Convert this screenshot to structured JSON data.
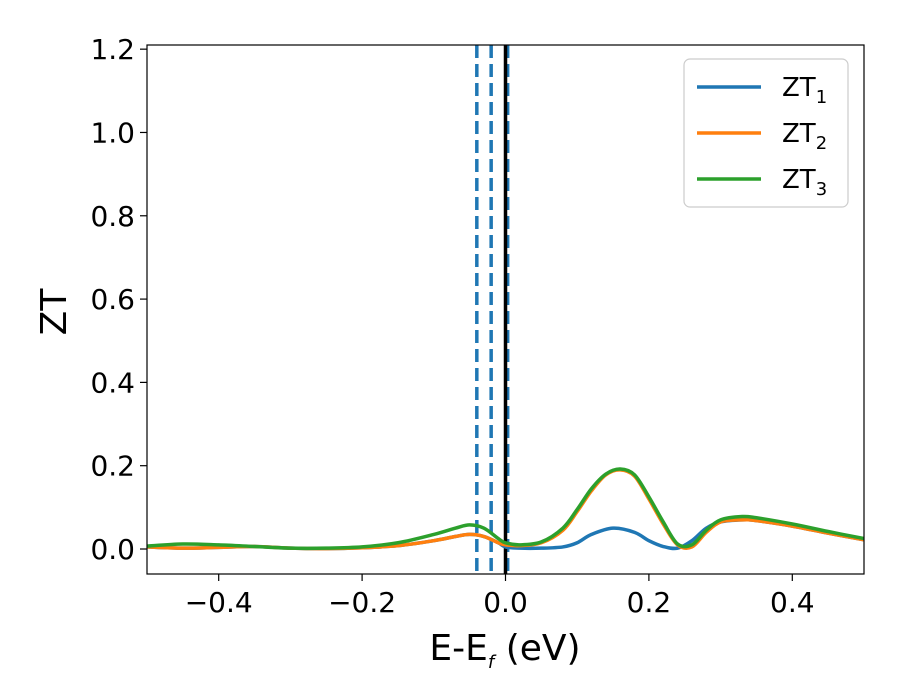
{
  "chart_data": {
    "type": "line",
    "title": "",
    "xlabel": {
      "main": "E-E",
      "sub": "f",
      "unit": " (eV)"
    },
    "ylabel": "ZT",
    "xlim": [
      -0.5,
      0.5
    ],
    "ylim": [
      -0.06,
      1.21
    ],
    "xticks": [
      -0.4,
      -0.2,
      0.0,
      0.2,
      0.4
    ],
    "xtick_labels": [
      "−0.4",
      "−0.2",
      "0.0",
      "0.2",
      "0.4"
    ],
    "yticks": [
      0.0,
      0.2,
      0.4,
      0.6,
      0.8,
      1.0,
      1.2
    ],
    "ytick_labels": [
      "0.0",
      "0.2",
      "0.4",
      "0.6",
      "0.8",
      "1.0",
      "1.2"
    ],
    "grid": false,
    "legend_position": "top-right",
    "series": [
      {
        "name": "ZT",
        "sub": "1",
        "color": "#1f77b4",
        "x": [
          -0.5,
          -0.45,
          -0.4,
          -0.35,
          -0.3,
          -0.25,
          -0.2,
          -0.15,
          -0.1,
          -0.07,
          -0.05,
          -0.03,
          -0.01,
          0.0,
          0.02,
          0.05,
          0.08,
          0.1,
          0.12,
          0.15,
          0.18,
          0.2,
          0.22,
          0.24,
          0.26,
          0.28,
          0.3,
          0.33,
          0.35,
          0.4,
          0.45,
          0.5
        ],
        "y": [
          0.005,
          0.002,
          0.004,
          0.006,
          0.002,
          0.001,
          0.003,
          0.008,
          0.02,
          0.03,
          0.035,
          0.03,
          0.015,
          0.005,
          0.002,
          0.002,
          0.005,
          0.015,
          0.035,
          0.05,
          0.04,
          0.02,
          0.006,
          0.002,
          0.02,
          0.05,
          0.065,
          0.07,
          0.068,
          0.055,
          0.038,
          0.022
        ]
      },
      {
        "name": "ZT",
        "sub": "2",
        "color": "#ff7f0e",
        "x": [
          -0.5,
          -0.45,
          -0.4,
          -0.35,
          -0.3,
          -0.25,
          -0.2,
          -0.15,
          -0.1,
          -0.07,
          -0.05,
          -0.03,
          -0.01,
          0.0,
          0.02,
          0.05,
          0.08,
          0.1,
          0.12,
          0.14,
          0.16,
          0.18,
          0.2,
          0.22,
          0.24,
          0.26,
          0.28,
          0.3,
          0.33,
          0.35,
          0.4,
          0.45,
          0.5
        ],
        "y": [
          0.005,
          0.002,
          0.004,
          0.006,
          0.002,
          0.001,
          0.003,
          0.008,
          0.02,
          0.03,
          0.035,
          0.03,
          0.015,
          0.01,
          0.008,
          0.015,
          0.045,
          0.09,
          0.14,
          0.178,
          0.19,
          0.175,
          0.12,
          0.06,
          0.01,
          0.005,
          0.04,
          0.065,
          0.07,
          0.068,
          0.055,
          0.038,
          0.022
        ]
      },
      {
        "name": "ZT",
        "sub": "3",
        "color": "#2ca02c",
        "x": [
          -0.5,
          -0.45,
          -0.4,
          -0.35,
          -0.3,
          -0.25,
          -0.2,
          -0.15,
          -0.1,
          -0.07,
          -0.05,
          -0.03,
          -0.01,
          0.0,
          0.02,
          0.05,
          0.08,
          0.1,
          0.12,
          0.14,
          0.16,
          0.18,
          0.2,
          0.22,
          0.24,
          0.26,
          0.28,
          0.3,
          0.33,
          0.35,
          0.4,
          0.45,
          0.5
        ],
        "y": [
          0.007,
          0.012,
          0.01,
          0.006,
          0.002,
          0.002,
          0.005,
          0.015,
          0.035,
          0.05,
          0.058,
          0.05,
          0.025,
          0.015,
          0.01,
          0.017,
          0.05,
          0.095,
          0.145,
          0.18,
          0.192,
          0.178,
          0.125,
          0.065,
          0.012,
          0.01,
          0.045,
          0.07,
          0.078,
          0.075,
          0.06,
          0.042,
          0.025
        ]
      }
    ],
    "vlines": [
      {
        "x": -0.04,
        "style": "dashed",
        "color": "#1f77b4"
      },
      {
        "x": -0.02,
        "style": "dashed",
        "color": "#1f77b4"
      },
      {
        "x": 0.003,
        "style": "dashed",
        "color": "#1f77b4"
      },
      {
        "x": 0.0,
        "style": "solid",
        "color": "#000000"
      }
    ]
  }
}
